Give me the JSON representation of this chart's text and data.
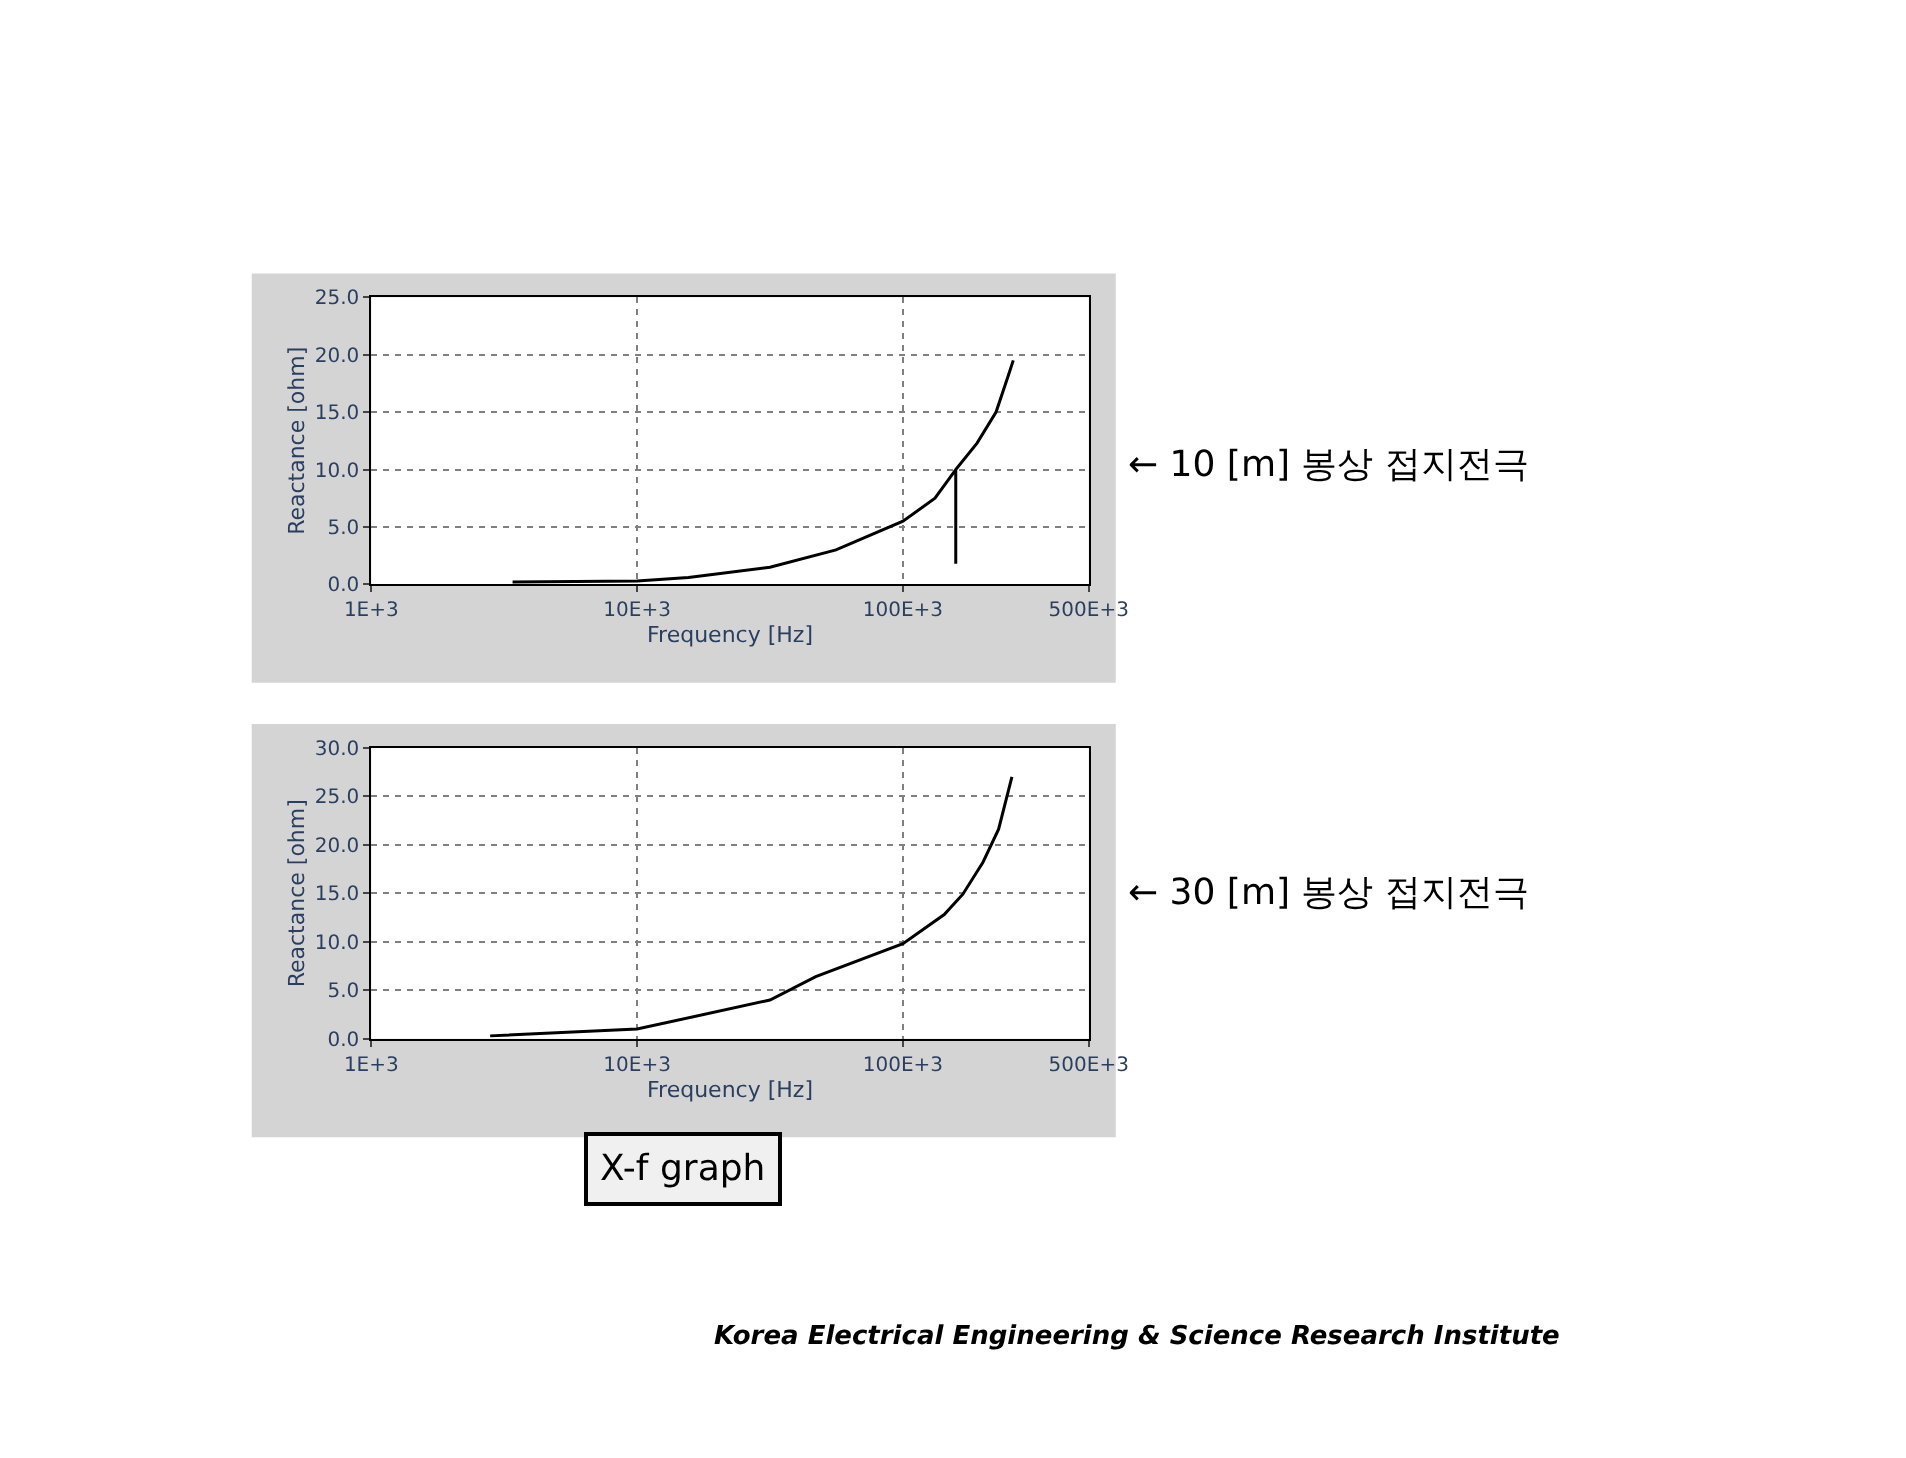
{
  "chart_data": [
    {
      "type": "line",
      "xlabel": "Frequency [Hz]",
      "ylabel": "Reactance [ohm]",
      "log": "x",
      "grid": true,
      "marker": "none",
      "line_style": "solid",
      "xlim": [
        1000,
        500000
      ],
      "xticks": [
        {
          "value": 1000,
          "label": "1E+3"
        },
        {
          "value": 10000,
          "label": "10E+3"
        },
        {
          "value": 100000,
          "label": "100E+3"
        },
        {
          "value": 500000,
          "label": "500E+3"
        }
      ],
      "ylim": [
        0,
        25
      ],
      "yticks": [
        {
          "value": 0,
          "label": "0.0"
        },
        {
          "value": 5,
          "label": "5.0"
        },
        {
          "value": 10,
          "label": "10.0"
        },
        {
          "value": 15,
          "label": "15.0"
        },
        {
          "value": 20,
          "label": "20.0"
        },
        {
          "value": 25,
          "label": "25.0"
        }
      ],
      "x": [
        3400,
        10000,
        15600,
        31600,
        56000,
        100000,
        132000,
        158000,
        158000,
        158000,
        190000,
        224000,
        250000,
        260000
      ],
      "series": [
        {
          "color": "#000000",
          "values": [
            0.2,
            0.3,
            0.6,
            1.5,
            3.0,
            5.5,
            7.5,
            10.0,
            1.8,
            10.0,
            12.3,
            15.0,
            18.3,
            19.5
          ]
        }
      ],
      "annotations": [
        "← 10 [m] 봉상 접지전극"
      ]
    },
    {
      "type": "line",
      "xlabel": "Frequency [Hz]",
      "ylabel": "Reactance [ohm]",
      "log": "x",
      "grid": true,
      "marker": "none",
      "line_style": "solid",
      "xlim": [
        1000,
        500000
      ],
      "xticks": [
        {
          "value": 1000,
          "label": "1E+3"
        },
        {
          "value": 10000,
          "label": "10E+3"
        },
        {
          "value": 100000,
          "label": "100E+3"
        },
        {
          "value": 500000,
          "label": "500E+3"
        }
      ],
      "ylim": [
        0,
        30
      ],
      "yticks": [
        {
          "value": 0,
          "label": "0.0"
        },
        {
          "value": 5,
          "label": "5.0"
        },
        {
          "value": 10,
          "label": "10.0"
        },
        {
          "value": 15,
          "label": "15.0"
        },
        {
          "value": 20,
          "label": "20.0"
        },
        {
          "value": 25,
          "label": "25.0"
        },
        {
          "value": 30,
          "label": "30.0"
        }
      ],
      "x": [
        2800,
        10000,
        31600,
        47000,
        100000,
        143000,
        168000,
        200000,
        229000,
        257000
      ],
      "series": [
        {
          "color": "#000000",
          "values": [
            0.3,
            1.0,
            4.0,
            6.4,
            9.8,
            12.8,
            14.9,
            18.2,
            21.6,
            27.0
          ]
        }
      ],
      "annotations": [
        "← 30 [m] 봉상 접지전극",
        "X-f graph",
        "Korea Electrical Engineering & Science Research Institute"
      ]
    }
  ]
}
